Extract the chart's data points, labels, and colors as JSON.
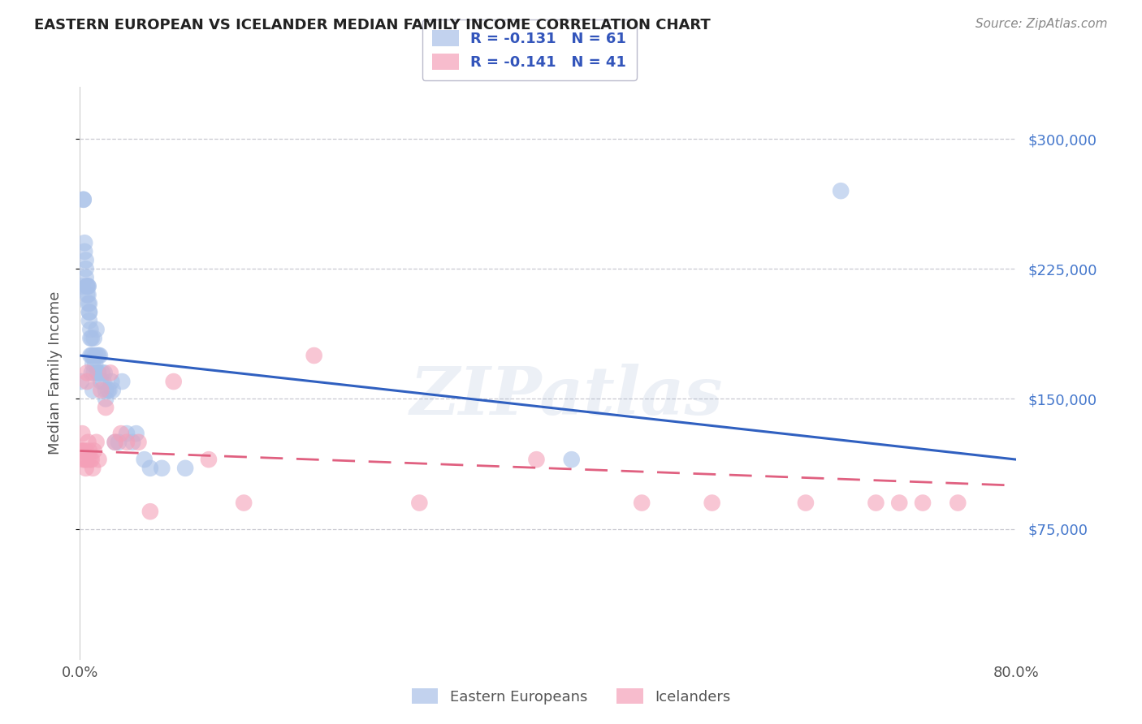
{
  "title": "EASTERN EUROPEAN VS ICELANDER MEDIAN FAMILY INCOME CORRELATION CHART",
  "source": "Source: ZipAtlas.com",
  "ylabel": "Median Family Income",
  "xlim": [
    0.0,
    0.8
  ],
  "ylim": [
    0,
    330000
  ],
  "yticks": [
    75000,
    150000,
    225000,
    300000
  ],
  "ytick_labels": [
    "$75,000",
    "$150,000",
    "$225,000",
    "$300,000"
  ],
  "xticks": [
    0.0,
    0.8
  ],
  "xtick_labels": [
    "0.0%",
    "80.0%"
  ],
  "background_color": "#ffffff",
  "grid_color": "#c8c8d0",
  "blue_color": "#a8c0e8",
  "pink_color": "#f4a0b8",
  "line_blue": "#3060c0",
  "line_pink": "#e06080",
  "watermark": "ZIPatlas",
  "eastern_european_x": [
    0.001,
    0.002,
    0.003,
    0.003,
    0.004,
    0.004,
    0.005,
    0.005,
    0.005,
    0.006,
    0.006,
    0.006,
    0.007,
    0.007,
    0.007,
    0.007,
    0.008,
    0.008,
    0.008,
    0.008,
    0.009,
    0.009,
    0.009,
    0.01,
    0.01,
    0.01,
    0.011,
    0.011,
    0.011,
    0.012,
    0.012,
    0.013,
    0.013,
    0.014,
    0.015,
    0.015,
    0.016,
    0.016,
    0.017,
    0.018,
    0.019,
    0.02,
    0.021,
    0.022,
    0.022,
    0.024,
    0.025,
    0.027,
    0.028,
    0.03,
    0.033,
    0.036,
    0.04,
    0.045,
    0.048,
    0.055,
    0.06,
    0.07,
    0.09,
    0.42,
    0.65
  ],
  "eastern_european_y": [
    160000,
    215000,
    265000,
    265000,
    240000,
    235000,
    230000,
    225000,
    220000,
    215000,
    215000,
    210000,
    215000,
    215000,
    210000,
    205000,
    205000,
    200000,
    200000,
    195000,
    190000,
    185000,
    175000,
    185000,
    175000,
    165000,
    175000,
    170000,
    155000,
    185000,
    165000,
    175000,
    170000,
    190000,
    175000,
    165000,
    175000,
    165000,
    175000,
    160000,
    165000,
    160000,
    165000,
    150000,
    155000,
    155000,
    155000,
    160000,
    155000,
    125000,
    125000,
    160000,
    130000,
    125000,
    130000,
    115000,
    110000,
    110000,
    110000,
    115000,
    270000
  ],
  "icelander_x": [
    0.001,
    0.002,
    0.002,
    0.003,
    0.003,
    0.004,
    0.005,
    0.005,
    0.005,
    0.006,
    0.006,
    0.007,
    0.007,
    0.008,
    0.009,
    0.01,
    0.011,
    0.012,
    0.014,
    0.016,
    0.018,
    0.022,
    0.026,
    0.03,
    0.035,
    0.04,
    0.05,
    0.06,
    0.08,
    0.11,
    0.14,
    0.2,
    0.29,
    0.39,
    0.48,
    0.54,
    0.62,
    0.68,
    0.7,
    0.72,
    0.75
  ],
  "icelander_y": [
    120000,
    130000,
    120000,
    120000,
    115000,
    115000,
    120000,
    115000,
    110000,
    165000,
    160000,
    125000,
    115000,
    120000,
    115000,
    115000,
    110000,
    120000,
    125000,
    115000,
    155000,
    145000,
    165000,
    125000,
    130000,
    125000,
    125000,
    85000,
    160000,
    115000,
    90000,
    175000,
    90000,
    115000,
    90000,
    90000,
    90000,
    90000,
    90000,
    90000,
    90000
  ],
  "blue_trendline_x": [
    0.0,
    0.8
  ],
  "blue_trendline_y": [
    175000,
    115000
  ],
  "pink_trendline_x": [
    0.0,
    0.8
  ],
  "pink_trendline_y": [
    120000,
    100000
  ],
  "legend_r1_text": "R = -0.131",
  "legend_n1_text": "N = 61",
  "legend_r2_text": "R = -0.141",
  "legend_n2_text": "N = 41"
}
